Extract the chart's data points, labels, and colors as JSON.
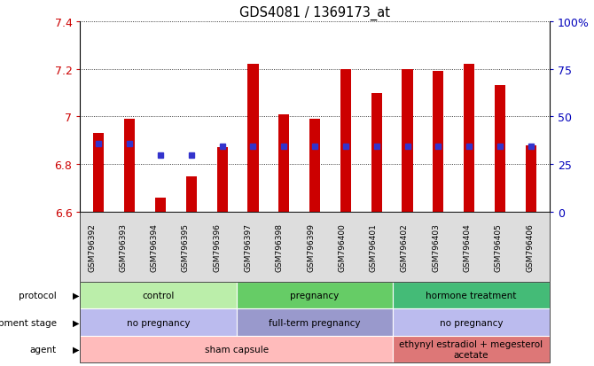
{
  "title": "GDS4081 / 1369173_at",
  "samples": [
    "GSM796392",
    "GSM796393",
    "GSM796394",
    "GSM796395",
    "GSM796396",
    "GSM796397",
    "GSM796398",
    "GSM796399",
    "GSM796400",
    "GSM796401",
    "GSM796402",
    "GSM796403",
    "GSM796404",
    "GSM796405",
    "GSM796406"
  ],
  "bar_values": [
    6.93,
    6.99,
    6.66,
    6.75,
    6.87,
    7.22,
    7.01,
    6.99,
    7.2,
    7.1,
    7.2,
    7.19,
    7.22,
    7.13,
    6.88
  ],
  "dot_values": [
    6.885,
    6.885,
    6.84,
    6.84,
    6.875,
    6.875,
    6.875,
    6.875,
    6.875,
    6.875,
    6.875,
    6.875,
    6.875,
    6.875,
    6.875
  ],
  "ymin": 6.6,
  "ymax": 7.4,
  "bar_color": "#cc0000",
  "dot_color": "#3333cc",
  "right_axis_values": [
    6.6,
    6.8,
    7.0,
    7.2,
    7.4
  ],
  "right_axis_labels": [
    "0",
    "25",
    "50",
    "75",
    "100%"
  ],
  "tick_label_color": "#cc0000",
  "right_tick_label_color": "#0000bb",
  "protocol_groups": [
    {
      "label": "control",
      "span": [
        0,
        4
      ],
      "color": "#bbeeaa"
    },
    {
      "label": "pregnancy",
      "span": [
        5,
        9
      ],
      "color": "#66cc66"
    },
    {
      "label": "hormone treatment",
      "span": [
        10,
        14
      ],
      "color": "#44bb77"
    }
  ],
  "dev_stage_groups": [
    {
      "label": "no pregnancy",
      "span": [
        0,
        4
      ],
      "color": "#bbbbee"
    },
    {
      "label": "full-term pregnancy",
      "span": [
        5,
        9
      ],
      "color": "#9999cc"
    },
    {
      "label": "no pregnancy",
      "span": [
        10,
        14
      ],
      "color": "#bbbbee"
    }
  ],
  "agent_groups": [
    {
      "label": "sham capsule",
      "span": [
        0,
        9
      ],
      "color": "#ffbbbb"
    },
    {
      "label": "ethynyl estradiol + megesterol\nacetate",
      "span": [
        10,
        14
      ],
      "color": "#dd7777"
    }
  ],
  "row_labels": [
    "protocol",
    "development stage",
    "agent"
  ],
  "bg_color": "#ffffff",
  "xticklabel_bg": "#dddddd"
}
